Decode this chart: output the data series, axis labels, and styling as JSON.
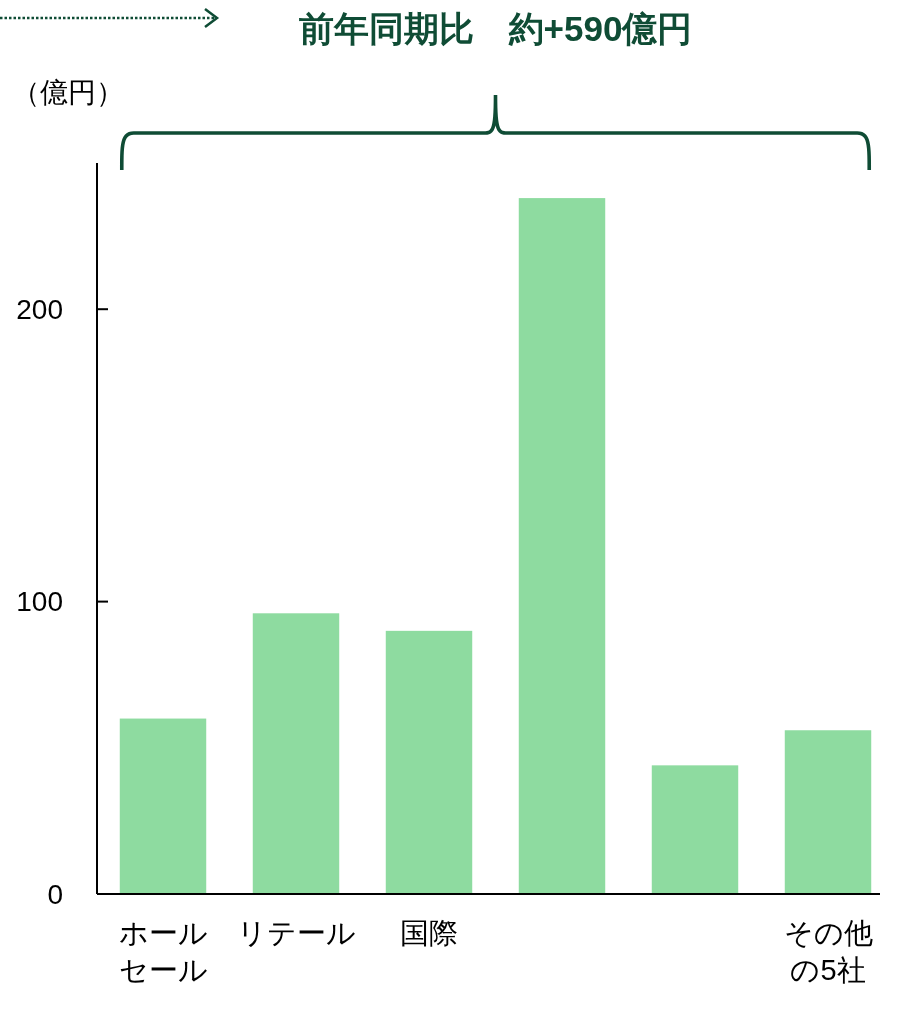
{
  "chart_data": {
    "type": "bar",
    "title": "前年同期比　約+590億円",
    "ylabel": "（億円）",
    "categories": [
      "ホールセール",
      "リテール",
      "国際",
      null,
      null,
      "その他の5社"
    ],
    "values": [
      60,
      96,
      90,
      238,
      44,
      56
    ],
    "color": "#8edba0",
    "ylim": [
      0,
      250
    ],
    "yticks": [
      0,
      100,
      200
    ]
  }
}
